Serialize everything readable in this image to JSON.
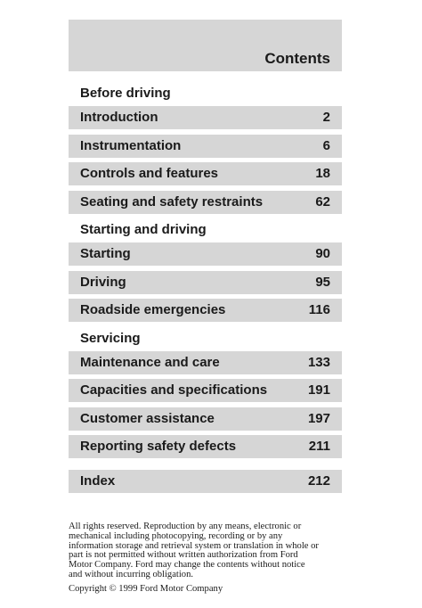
{
  "header": {
    "title": "Contents"
  },
  "sections": [
    {
      "heading": "Before driving",
      "entries": [
        {
          "title": "Introduction",
          "page": 2
        },
        {
          "title": "Instrumentation",
          "page": 6
        },
        {
          "title": "Controls and features",
          "page": 18
        },
        {
          "title": "Seating and safety restraints",
          "page": 62
        }
      ]
    },
    {
      "heading": "Starting and driving",
      "entries": [
        {
          "title": "Starting",
          "page": 90
        },
        {
          "title": "Driving",
          "page": 95
        },
        {
          "title": "Roadside emergencies",
          "page": 116
        }
      ]
    },
    {
      "heading": "Servicing",
      "entries": [
        {
          "title": "Maintenance and care",
          "page": 133
        },
        {
          "title": "Capacities and specifications",
          "page": 191
        },
        {
          "title": "Customer assistance",
          "page": 197
        },
        {
          "title": "Reporting safety defects",
          "page": 211
        }
      ]
    }
  ],
  "index": {
    "title": "Index",
    "page": 212
  },
  "footer": {
    "notice": [
      "All rights reserved. Reproduction by any means, electronic or",
      "mechanical including photocopying, recording or by any",
      "information storage and retrieval system or translation in whole or",
      "part is not permitted without written authorization from Ford",
      "Motor Company. Ford may change the contents without notice",
      "and without incurring obligation."
    ],
    "copyright": "Copyright © 1999 Ford Motor Company"
  }
}
